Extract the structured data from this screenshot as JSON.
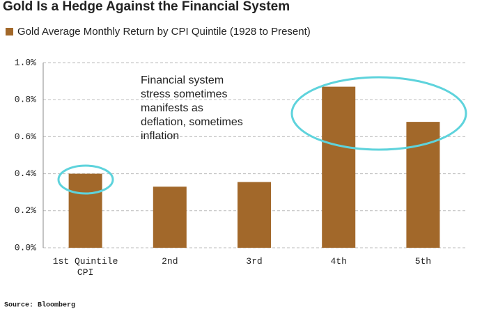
{
  "chart_data": {
    "type": "bar",
    "title": "Gold Is a Hedge Against the Financial System",
    "series": [
      {
        "name": "Gold Average Monthly Return by CPI Quintile (1928 to Present)",
        "color": "#a2682a",
        "values": [
          0.4,
          0.33,
          0.355,
          0.87,
          0.68
        ]
      }
    ],
    "categories": [
      "1st Quintile CPI",
      "2nd",
      "3rd",
      "4th",
      "5th"
    ],
    "ylim": [
      0,
      1
    ],
    "yticks": [
      {
        "value": 0,
        "label": "0.0%"
      },
      {
        "value": 0.2,
        "label": "0.2%"
      },
      {
        "value": 0.4,
        "label": "0.4%"
      },
      {
        "value": 0.6,
        "label": "0.6%"
      },
      {
        "value": 0.8,
        "label": "0.8%"
      },
      {
        "value": 1,
        "label": "1.0%"
      }
    ],
    "grid": true,
    "annotation": [
      "Financial system",
      "stress sometimes",
      "manifests as",
      "deflation, sometimes",
      "inflation"
    ],
    "source": "Source: Bloomberg"
  }
}
